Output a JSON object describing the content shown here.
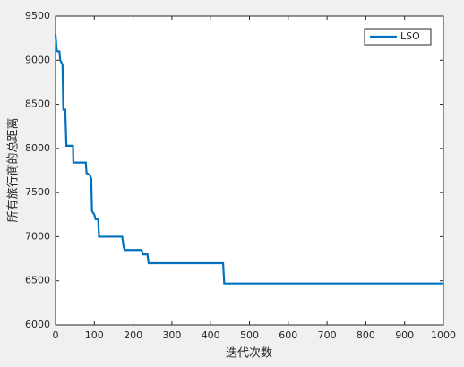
{
  "chart_data": {
    "type": "line",
    "xlabel": "迭代次数",
    "ylabel": "所有旅行商的总距离",
    "x": [
      0,
      3,
      5,
      10,
      12,
      18,
      20,
      25,
      28,
      45,
      46,
      78,
      80,
      88,
      90,
      92,
      94,
      100,
      103,
      110,
      112,
      172,
      175,
      178,
      222,
      225,
      237,
      240,
      432,
      435,
      1000
    ],
    "series": [
      {
        "name": "LSO",
        "color": "#0072bd",
        "values": [
          9290,
          9120,
          9100,
          9100,
          9000,
          8950,
          8440,
          8440,
          8030,
          8030,
          7840,
          7840,
          7720,
          7700,
          7680,
          7660,
          7290,
          7250,
          7200,
          7200,
          7000,
          7000,
          6900,
          6850,
          6850,
          6800,
          6800,
          6700,
          6700,
          6470,
          6470
        ]
      }
    ],
    "xlim": [
      0,
      1000
    ],
    "xticks": [
      0,
      100,
      200,
      300,
      400,
      500,
      600,
      700,
      800,
      900,
      1000
    ],
    "ylim": [
      6000,
      9500
    ],
    "yticks": [
      6000,
      6500,
      7000,
      7500,
      8000,
      8500,
      9000,
      9500
    ],
    "legend": "upper right"
  }
}
